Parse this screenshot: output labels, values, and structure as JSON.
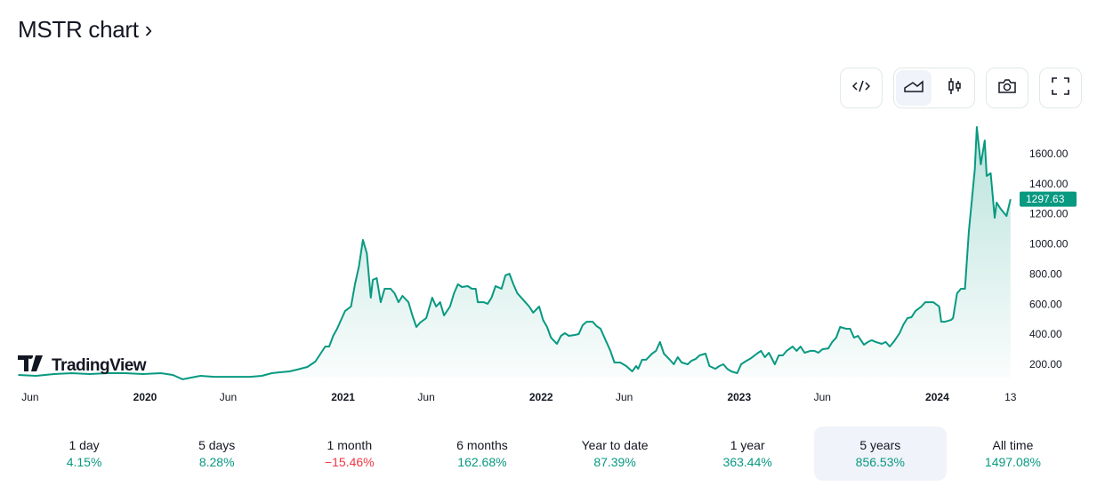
{
  "title": "MSTR chart",
  "title_chevron": "›",
  "toolbar": {
    "embed": "code-icon",
    "area": "area-chart-icon",
    "candles": "candlestick-icon",
    "snapshot": "camera-icon",
    "fullscreen": "fullscreen-icon",
    "active": "area"
  },
  "logo_text": "TradingView",
  "colors": {
    "line": "#089981",
    "negative": "#f23645",
    "active_bg": "#f0f3fa"
  },
  "chart_data": {
    "type": "area",
    "title": "MSTR chart",
    "xlabel": "",
    "ylabel": "",
    "ylim": [
      80,
      1900
    ],
    "y_ticks": [
      "200.00",
      "400.00",
      "600.00",
      "800.00",
      "1000.00",
      "1200.00",
      "1400.00",
      "1600.00"
    ],
    "y_tick_values": [
      200,
      400,
      600,
      800,
      1000,
      1200,
      1400,
      1600
    ],
    "x_ticks": [
      {
        "label": "Jun",
        "t": 2019.42,
        "bold": false
      },
      {
        "label": "2020",
        "t": 2020.0,
        "bold": true
      },
      {
        "label": "Jun",
        "t": 2020.42,
        "bold": false
      },
      {
        "label": "2021",
        "t": 2021.0,
        "bold": true
      },
      {
        "label": "Jun",
        "t": 2021.42,
        "bold": false
      },
      {
        "label": "2022",
        "t": 2022.0,
        "bold": true
      },
      {
        "label": "Jun",
        "t": 2022.42,
        "bold": false
      },
      {
        "label": "2023",
        "t": 2023.0,
        "bold": true
      },
      {
        "label": "Jun",
        "t": 2023.42,
        "bold": false
      },
      {
        "label": "2024",
        "t": 2024.0,
        "bold": true
      },
      {
        "label": "13",
        "t": 2024.37,
        "bold": false
      }
    ],
    "last_price": "1297.63",
    "last_value": 1297.63,
    "points": [
      [
        2019.36,
        129
      ],
      [
        2019.45,
        123
      ],
      [
        2019.54,
        135
      ],
      [
        2019.63,
        141
      ],
      [
        2019.72,
        135
      ],
      [
        2019.81,
        141
      ],
      [
        2019.9,
        141
      ],
      [
        2019.99,
        135
      ],
      [
        2020.08,
        141
      ],
      [
        2020.14,
        129
      ],
      [
        2020.19,
        100
      ],
      [
        2020.23,
        111
      ],
      [
        2020.28,
        123
      ],
      [
        2020.35,
        117
      ],
      [
        2020.44,
        117
      ],
      [
        2020.53,
        117
      ],
      [
        2020.59,
        123
      ],
      [
        2020.64,
        141
      ],
      [
        2020.68,
        147
      ],
      [
        2020.73,
        153
      ],
      [
        2020.77,
        165
      ],
      [
        2020.82,
        182
      ],
      [
        2020.86,
        218
      ],
      [
        2020.91,
        318
      ],
      [
        2020.93,
        318
      ],
      [
        2020.95,
        389
      ],
      [
        2020.97,
        436
      ],
      [
        2021.0,
        525
      ],
      [
        2021.01,
        554
      ],
      [
        2021.04,
        584
      ],
      [
        2021.06,
        732
      ],
      [
        2021.08,
        850
      ],
      [
        2021.1,
        1027
      ],
      [
        2021.12,
        938
      ],
      [
        2021.14,
        643
      ],
      [
        2021.15,
        761
      ],
      [
        2021.17,
        773
      ],
      [
        2021.19,
        613
      ],
      [
        2021.21,
        702
      ],
      [
        2021.24,
        702
      ],
      [
        2021.26,
        672
      ],
      [
        2021.28,
        613
      ],
      [
        2021.3,
        655
      ],
      [
        2021.33,
        613
      ],
      [
        2021.35,
        525
      ],
      [
        2021.37,
        448
      ],
      [
        2021.39,
        478
      ],
      [
        2021.42,
        507
      ],
      [
        2021.45,
        643
      ],
      [
        2021.47,
        584
      ],
      [
        2021.49,
        613
      ],
      [
        2021.51,
        525
      ],
      [
        2021.54,
        584
      ],
      [
        2021.56,
        672
      ],
      [
        2021.58,
        732
      ],
      [
        2021.6,
        714
      ],
      [
        2021.63,
        720
      ],
      [
        2021.65,
        702
      ],
      [
        2021.67,
        702
      ],
      [
        2021.68,
        613
      ],
      [
        2021.71,
        613
      ],
      [
        2021.73,
        602
      ],
      [
        2021.75,
        643
      ],
      [
        2021.77,
        720
      ],
      [
        2021.8,
        702
      ],
      [
        2021.82,
        791
      ],
      [
        2021.84,
        802
      ],
      [
        2021.86,
        732
      ],
      [
        2021.88,
        672
      ],
      [
        2021.92,
        613
      ],
      [
        2021.94,
        584
      ],
      [
        2021.96,
        543
      ],
      [
        2021.99,
        584
      ],
      [
        2022.01,
        495
      ],
      [
        2022.03,
        448
      ],
      [
        2022.05,
        377
      ],
      [
        2022.08,
        336
      ],
      [
        2022.1,
        389
      ],
      [
        2022.12,
        407
      ],
      [
        2022.14,
        389
      ],
      [
        2022.17,
        395
      ],
      [
        2022.19,
        401
      ],
      [
        2022.21,
        460
      ],
      [
        2022.23,
        483
      ],
      [
        2022.26,
        483
      ],
      [
        2022.28,
        454
      ],
      [
        2022.3,
        436
      ],
      [
        2022.32,
        377
      ],
      [
        2022.35,
        289
      ],
      [
        2022.37,
        212
      ],
      [
        2022.4,
        212
      ],
      [
        2022.43,
        188
      ],
      [
        2022.46,
        153
      ],
      [
        2022.48,
        188
      ],
      [
        2022.49,
        170
      ],
      [
        2022.51,
        230
      ],
      [
        2022.53,
        230
      ],
      [
        2022.56,
        271
      ],
      [
        2022.58,
        289
      ],
      [
        2022.6,
        348
      ],
      [
        2022.62,
        271
      ],
      [
        2022.65,
        230
      ],
      [
        2022.67,
        200
      ],
      [
        2022.69,
        247
      ],
      [
        2022.71,
        212
      ],
      [
        2022.74,
        200
      ],
      [
        2022.76,
        224
      ],
      [
        2022.78,
        235
      ],
      [
        2022.8,
        259
      ],
      [
        2022.83,
        271
      ],
      [
        2022.85,
        188
      ],
      [
        2022.88,
        170
      ],
      [
        2022.9,
        188
      ],
      [
        2022.92,
        200
      ],
      [
        2022.94,
        170
      ],
      [
        2022.96,
        153
      ],
      [
        2022.99,
        141
      ],
      [
        2023.01,
        200
      ],
      [
        2023.03,
        218
      ],
      [
        2023.06,
        241
      ],
      [
        2023.09,
        271
      ],
      [
        2023.11,
        289
      ],
      [
        2023.13,
        247
      ],
      [
        2023.15,
        277
      ],
      [
        2023.18,
        200
      ],
      [
        2023.2,
        259
      ],
      [
        2023.22,
        259
      ],
      [
        2023.24,
        289
      ],
      [
        2023.27,
        318
      ],
      [
        2023.29,
        289
      ],
      [
        2023.31,
        318
      ],
      [
        2023.33,
        277
      ],
      [
        2023.36,
        289
      ],
      [
        2023.38,
        289
      ],
      [
        2023.4,
        277
      ],
      [
        2023.42,
        300
      ],
      [
        2023.45,
        306
      ],
      [
        2023.47,
        348
      ],
      [
        2023.49,
        377
      ],
      [
        2023.51,
        448
      ],
      [
        2023.54,
        436
      ],
      [
        2023.56,
        436
      ],
      [
        2023.58,
        377
      ],
      [
        2023.6,
        389
      ],
      [
        2023.63,
        330
      ],
      [
        2023.65,
        348
      ],
      [
        2023.67,
        360
      ],
      [
        2023.69,
        348
      ],
      [
        2023.72,
        336
      ],
      [
        2023.74,
        348
      ],
      [
        2023.76,
        318
      ],
      [
        2023.78,
        348
      ],
      [
        2023.81,
        407
      ],
      [
        2023.83,
        466
      ],
      [
        2023.85,
        507
      ],
      [
        2023.87,
        513
      ],
      [
        2023.89,
        554
      ],
      [
        2023.92,
        584
      ],
      [
        2023.94,
        613
      ],
      [
        2023.96,
        613
      ],
      [
        2023.98,
        613
      ],
      [
        2024.01,
        584
      ],
      [
        2024.02,
        483
      ],
      [
        2024.04,
        483
      ],
      [
        2024.07,
        495
      ],
      [
        2024.08,
        507
      ],
      [
        2024.1,
        672
      ],
      [
        2024.12,
        702
      ],
      [
        2024.14,
        702
      ],
      [
        2024.16,
        1086
      ],
      [
        2024.19,
        1499
      ],
      [
        2024.2,
        1777
      ],
      [
        2024.22,
        1529
      ],
      [
        2024.24,
        1688
      ],
      [
        2024.25,
        1452
      ],
      [
        2024.27,
        1470
      ],
      [
        2024.29,
        1174
      ],
      [
        2024.3,
        1275
      ],
      [
        2024.32,
        1234
      ],
      [
        2024.35,
        1186
      ],
      [
        2024.37,
        1297.63
      ]
    ]
  },
  "periods": [
    {
      "label": "1 day",
      "change": "4.15%",
      "sign": "pos"
    },
    {
      "label": "5 days",
      "change": "8.28%",
      "sign": "pos"
    },
    {
      "label": "1 month",
      "change": "−15.46%",
      "sign": "neg"
    },
    {
      "label": "6 months",
      "change": "162.68%",
      "sign": "pos"
    },
    {
      "label": "Year to date",
      "change": "87.39%",
      "sign": "pos"
    },
    {
      "label": "1 year",
      "change": "363.44%",
      "sign": "pos"
    },
    {
      "label": "5 years",
      "change": "856.53%",
      "sign": "pos",
      "active": true
    },
    {
      "label": "All time",
      "change": "1497.08%",
      "sign": "pos"
    }
  ]
}
